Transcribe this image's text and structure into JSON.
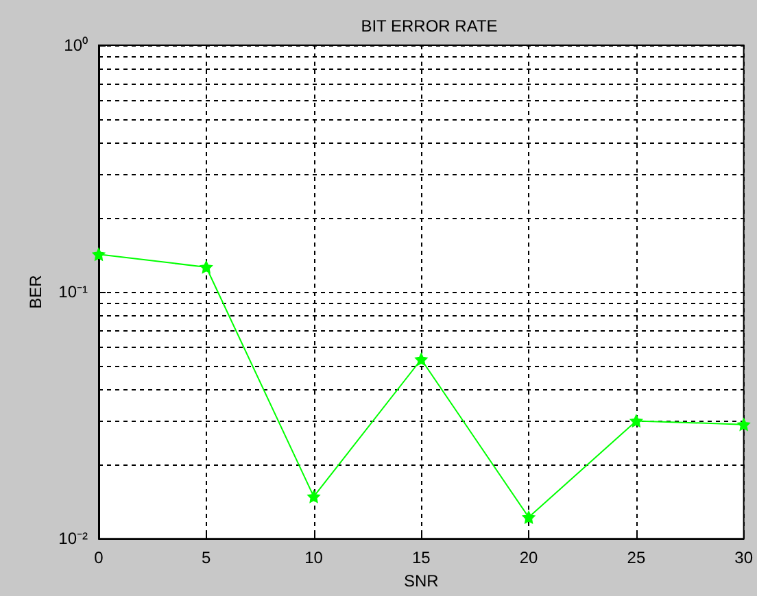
{
  "chart_data": {
    "type": "line",
    "title": "BIT ERROR RATE",
    "xlabel": "SNR",
    "ylabel": "BER",
    "x": [
      0,
      5,
      10,
      15,
      20,
      25,
      30
    ],
    "series": [
      {
        "color": "#00ff00",
        "values": [
          0.142,
          0.126,
          0.0148,
          0.0533,
          0.0122,
          0.03,
          0.029
        ]
      }
    ],
    "xlim": [
      0,
      30
    ],
    "xticks": [
      0,
      5,
      10,
      15,
      20,
      25,
      30
    ],
    "ylim": [
      0.01,
      1
    ],
    "yticks": [
      {
        "value": 0.01,
        "label": "10⁻²"
      },
      {
        "value": 0.1,
        "label": "10⁻¹"
      },
      {
        "value": 1,
        "label": "10⁰"
      }
    ],
    "log": "y",
    "grid": true,
    "marker": "star",
    "line_style": "solid"
  }
}
